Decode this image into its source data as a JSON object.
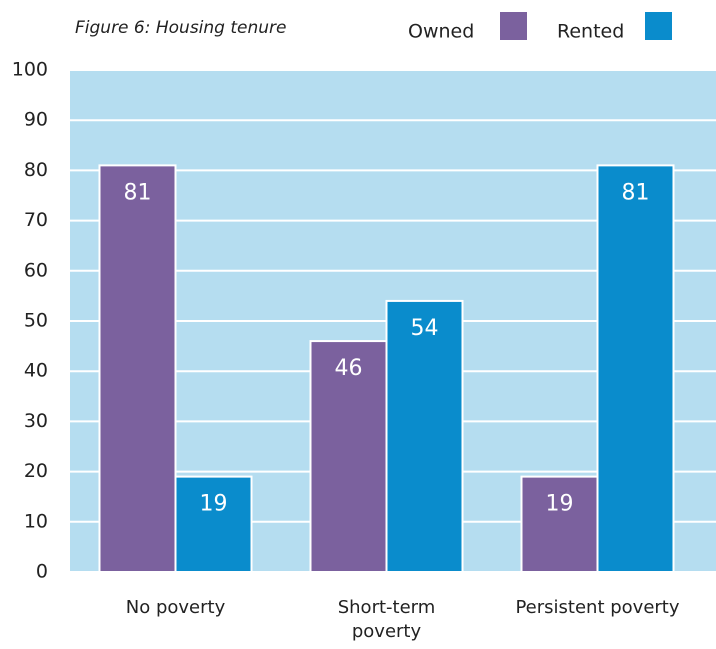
{
  "chart_data": {
    "type": "bar",
    "title": "Figure 6: Housing tenure",
    "categories": [
      "No poverty",
      "Short-term\npoverty",
      "Persistent poverty"
    ],
    "series": [
      {
        "name": "Owned",
        "color": "#7b619e",
        "values": [
          81,
          46,
          19
        ]
      },
      {
        "name": "Rented",
        "color": "#0a8ccc",
        "values": [
          19,
          54,
          81
        ]
      }
    ],
    "ylim": [
      0,
      100
    ],
    "yticks": [
      0,
      10,
      20,
      30,
      40,
      50,
      60,
      70,
      80,
      90,
      100
    ],
    "grid": true,
    "plot_background": "#b5ddf0",
    "legend": "top right"
  }
}
